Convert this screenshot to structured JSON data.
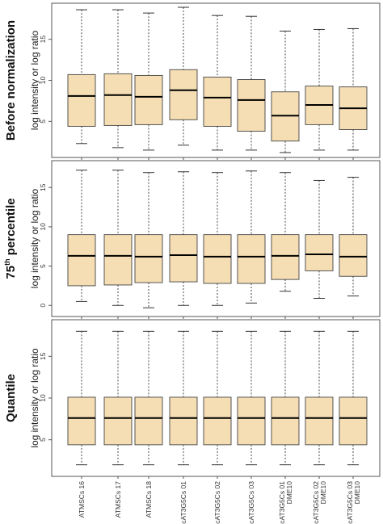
{
  "colors": {
    "box_fill": "#f5deb3",
    "box_stroke": "#444444",
    "median": "#000000",
    "panel_border": "#555555"
  },
  "chart_data": [
    {
      "type": "boxplot",
      "side_label": "Before normalization",
      "ylabel": "log intensity or log ratio",
      "ylim": [
        1.0,
        19.0
      ],
      "yticks": [
        "5",
        "10",
        "15"
      ],
      "categories": [
        "ATMSCs 16",
        "ATMSCs 17",
        "ATMSCs 18",
        "cAT3G5Cs 01",
        "cAT3G5Cs 02",
        "cAT3G5Cs 03",
        "cAT3G5Cs 01 DME10",
        "cAT3G5Cs 02 DME10",
        "cAT3G5Cs 03 DME10"
      ],
      "boxes": [
        {
          "min": 2.3,
          "q1": 4.4,
          "median": 8.1,
          "q3": 10.7,
          "max": 18.6
        },
        {
          "min": 1.8,
          "q1": 4.5,
          "median": 8.2,
          "q3": 10.8,
          "max": 18.6
        },
        {
          "min": 1.5,
          "q1": 4.6,
          "median": 8.0,
          "q3": 10.6,
          "max": 18.2
        },
        {
          "min": 2.1,
          "q1": 5.2,
          "median": 8.8,
          "q3": 11.3,
          "max": 18.9
        },
        {
          "min": 1.5,
          "q1": 4.4,
          "median": 7.9,
          "q3": 10.4,
          "max": 17.9
        },
        {
          "min": 1.5,
          "q1": 3.8,
          "median": 7.6,
          "q3": 10.1,
          "max": 17.8
        },
        {
          "min": 1.2,
          "q1": 2.6,
          "median": 5.7,
          "q3": 8.6,
          "max": 16.0
        },
        {
          "min": 1.5,
          "q1": 4.6,
          "median": 7.0,
          "q3": 9.3,
          "max": 16.2
        },
        {
          "min": 1.5,
          "q1": 4.0,
          "median": 6.6,
          "q3": 9.2,
          "max": 16.3
        }
      ]
    },
    {
      "type": "boxplot",
      "side_label": "75",
      "side_label_sup": "th",
      "side_label_rest": " percentile",
      "ylabel": "log intensity or log ratio",
      "ylim": [
        -1.0,
        18.0
      ],
      "yticks": [
        "0",
        "5",
        "10",
        "15"
      ],
      "categories": [
        "ATMSCs 16",
        "ATMSCs 17",
        "ATMSCs 18",
        "cAT3G5Cs 01",
        "cAT3G5Cs 02",
        "cAT3G5Cs 03",
        "cAT3G5Cs 01 DME10",
        "cAT3G5Cs 02 DME10",
        "cAT3G5Cs 03 DME10"
      ],
      "boxes": [
        {
          "min": 0.5,
          "q1": 2.5,
          "median": 6.3,
          "q3": 9.0,
          "max": 17.2
        },
        {
          "min": 0.0,
          "q1": 2.6,
          "median": 6.3,
          "q3": 9.0,
          "max": 17.2
        },
        {
          "min": -0.3,
          "q1": 2.9,
          "median": 6.2,
          "q3": 9.0,
          "max": 16.9
        },
        {
          "min": 0.0,
          "q1": 3.0,
          "median": 6.4,
          "q3": 9.0,
          "max": 17.0
        },
        {
          "min": 0.0,
          "q1": 2.8,
          "median": 6.2,
          "q3": 9.0,
          "max": 16.9
        },
        {
          "min": 0.3,
          "q1": 2.8,
          "median": 6.2,
          "q3": 9.0,
          "max": 17.1
        },
        {
          "min": 1.8,
          "q1": 3.3,
          "median": 6.3,
          "q3": 9.0,
          "max": 16.9
        },
        {
          "min": 0.9,
          "q1": 4.4,
          "median": 6.5,
          "q3": 9.0,
          "max": 15.9
        },
        {
          "min": 1.2,
          "q1": 3.7,
          "median": 6.2,
          "q3": 9.0,
          "max": 16.3
        }
      ]
    },
    {
      "type": "boxplot",
      "side_label": "Quantile",
      "ylabel": "log intensity or log ratio",
      "ylim": [
        1.0,
        19.0
      ],
      "yticks": [
        "5",
        "10",
        "15"
      ],
      "categories": [
        "ATMSCs 16",
        "ATMSCs 17",
        "ATMSCs 18",
        "cAT3G5Cs 01",
        "cAT3G5Cs 02",
        "cAT3G5Cs 03",
        "cAT3G5Cs 01 DME10",
        "cAT3G5Cs 02 DME10",
        "cAT3G5Cs 03 DME10"
      ],
      "boxes": [
        {
          "min": 2.0,
          "q1": 4.4,
          "median": 7.6,
          "q3": 10.1,
          "max": 18.0
        },
        {
          "min": 2.0,
          "q1": 4.4,
          "median": 7.6,
          "q3": 10.1,
          "max": 18.0
        },
        {
          "min": 2.0,
          "q1": 4.4,
          "median": 7.6,
          "q3": 10.1,
          "max": 18.0
        },
        {
          "min": 2.0,
          "q1": 4.4,
          "median": 7.6,
          "q3": 10.1,
          "max": 18.0
        },
        {
          "min": 2.0,
          "q1": 4.4,
          "median": 7.6,
          "q3": 10.1,
          "max": 18.0
        },
        {
          "min": 2.0,
          "q1": 4.4,
          "median": 7.6,
          "q3": 10.1,
          "max": 18.0
        },
        {
          "min": 2.0,
          "q1": 4.4,
          "median": 7.6,
          "q3": 10.1,
          "max": 18.0
        },
        {
          "min": 2.0,
          "q1": 4.4,
          "median": 7.6,
          "q3": 10.1,
          "max": 18.0
        },
        {
          "min": 2.0,
          "q1": 4.4,
          "median": 7.6,
          "q3": 10.1,
          "max": 18.0
        }
      ]
    }
  ],
  "x_labels": [
    "ATMSCs 16",
    "ATMSCs 17",
    "ATMSCs 18",
    "cAT3G5Cs 01",
    "cAT3G5Cs 02",
    "cAT3G5Cs 03",
    "cAT3G5Cs 01\nDME10",
    "cAT3G5Cs 02\nDME10",
    "cAT3G5Cs 03\nDME10"
  ]
}
